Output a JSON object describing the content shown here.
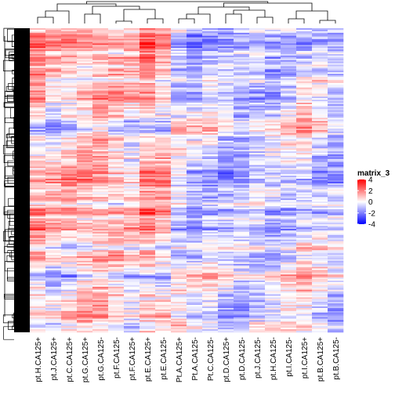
{
  "chart_data": {
    "type": "heatmap",
    "title": "",
    "columns": [
      "pt.H.CA125+",
      "pt.J.CA125+",
      "pt.C.CA125+",
      "pt.G.CA125+",
      "pt.G.CA125-",
      "pt.F.CA125-",
      "pt.F.CA125+",
      "pt.E.CA125+",
      "pt.E.CA125-",
      "Pt.A.CA125+",
      "Pt.A.CA125-",
      "Pt.C.CA125-",
      "pt.D.CA125+",
      "pt.D.CA125-",
      "pt.J.CA125-",
      "pt.H.CA125-",
      "pt.I.CA125-",
      "pt.I.CA125+",
      "pt.B.CA125+",
      "pt.B.CA125-"
    ],
    "row_count": 200,
    "value_range": [
      -4,
      4
    ],
    "row_dendrogram": true,
    "column_dendrogram": true,
    "color_scale": {
      "low": "#0000ff",
      "mid": "#ffffff",
      "high": "#ff0000"
    },
    "legend": {
      "title": "matrix_3",
      "ticks": [
        4,
        2,
        0,
        -2,
        -4
      ],
      "placement": "right"
    },
    "column_bias": [
      0.8,
      0.3,
      0.6,
      0.9,
      1.1,
      0.6,
      0.2,
      1.2,
      0.7,
      -0.2,
      -0.8,
      -0.5,
      -0.9,
      -1.0,
      -0.6,
      -0.7,
      -0.3,
      0.1,
      -0.4,
      -0.9
    ]
  }
}
